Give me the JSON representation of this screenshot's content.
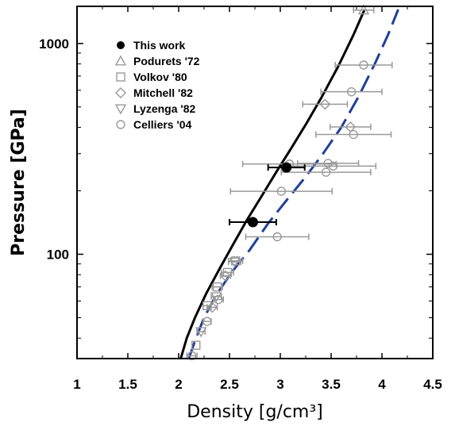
{
  "chart_data": {
    "type": "scatter",
    "xlabel": "Density [g/cm³]",
    "ylabel": "Pressure [GPa]",
    "xlim": [
      1,
      4.5
    ],
    "ylim": [
      32,
      1500
    ],
    "yscale": "log",
    "x_ticks": [
      1,
      1.5,
      2,
      2.5,
      3,
      3.5,
      4,
      4.5
    ],
    "x_tick_labels": [
      "1",
      "1.5",
      "2",
      "2.5",
      "3",
      "3.5",
      "4",
      "4.5"
    ],
    "y_labeled_ticks": [
      100,
      1000
    ],
    "y_tick_labels": [
      "100",
      "1000"
    ],
    "grid": false,
    "legend_position": "top-left",
    "curves": [
      {
        "style": "solid",
        "color": "#000000",
        "points": [
          [
            2.02,
            32
          ],
          [
            2.08,
            40
          ],
          [
            2.16,
            50
          ],
          [
            2.27,
            65
          ],
          [
            2.4,
            85
          ],
          [
            2.53,
            110
          ],
          [
            2.67,
            145
          ],
          [
            2.82,
            190
          ],
          [
            2.97,
            250
          ],
          [
            3.11,
            320
          ],
          [
            3.26,
            420
          ],
          [
            3.41,
            560
          ],
          [
            3.57,
            780
          ],
          [
            3.72,
            1100
          ],
          [
            3.83,
            1450
          ]
        ]
      },
      {
        "style": "dashed",
        "color": "#1f3f99",
        "points": [
          [
            2.1,
            32
          ],
          [
            2.17,
            40
          ],
          [
            2.25,
            50
          ],
          [
            2.36,
            63
          ],
          [
            2.52,
            82
          ],
          [
            2.7,
            105
          ],
          [
            2.88,
            140
          ],
          [
            3.06,
            180
          ],
          [
            3.24,
            230
          ],
          [
            3.42,
            300
          ],
          [
            3.6,
            400
          ],
          [
            3.77,
            560
          ],
          [
            3.93,
            800
          ],
          [
            4.06,
            1100
          ],
          [
            4.16,
            1450
          ]
        ]
      }
    ],
    "series": [
      {
        "name": "This work",
        "marker": "filled-circle",
        "color": "#000000",
        "points": [
          {
            "x": 2.73,
            "y": 142,
            "xerr": 0.23
          },
          {
            "x": 3.06,
            "y": 258,
            "xerr": 0.18
          }
        ]
      },
      {
        "name": "Podurets '72",
        "marker": "triangle-up",
        "color": "#999999",
        "points": [
          {
            "x": 3.82,
            "y": 1440,
            "xerr": 0.1
          }
        ]
      },
      {
        "name": "Volkov '80",
        "marker": "square",
        "color": "#999999",
        "points": [
          {
            "x": 2.17,
            "y": 37
          },
          {
            "x": 2.28,
            "y": 57,
            "xerr": 0.04
          },
          {
            "x": 2.38,
            "y": 70,
            "xerr": 0.05
          },
          {
            "x": 2.48,
            "y": 82,
            "xerr": 0.06
          },
          {
            "x": 2.56,
            "y": 93,
            "xerr": 0.07
          }
        ]
      },
      {
        "name": "Mitchell '82",
        "marker": "diamond",
        "color": "#999999",
        "points": [
          {
            "x": 2.33,
            "y": 56,
            "xerr": 0.05
          },
          {
            "x": 2.46,
            "y": 79,
            "xerr": 0.05
          },
          {
            "x": 3.44,
            "y": 515,
            "xerr": 0.22
          },
          {
            "x": 3.69,
            "y": 402,
            "xerr": 0.2
          }
        ]
      },
      {
        "name": "Lyzenga '82",
        "marker": "triangle-down",
        "color": "#999999",
        "points": [
          {
            "x": 2.22,
            "y": 43,
            "xerr": 0.04
          },
          {
            "x": 2.37,
            "y": 63,
            "xerr": 0.05
          },
          {
            "x": 2.55,
            "y": 92,
            "xerr": 0.06
          }
        ]
      },
      {
        "name": "Celliers '04",
        "marker": "open-circle",
        "color": "#999999",
        "points": [
          {
            "x": 2.13,
            "y": 33,
            "xerr": 0.05
          },
          {
            "x": 2.28,
            "y": 48,
            "xerr": 0.04
          },
          {
            "x": 2.39,
            "y": 61,
            "xerr": 0.05
          },
          {
            "x": 2.97,
            "y": 121,
            "xerr": 0.31
          },
          {
            "x": 3.01,
            "y": 199,
            "xerr": 0.5
          },
          {
            "x": 3.09,
            "y": 268,
            "xerr": 0.46
          },
          {
            "x": 3.45,
            "y": 245,
            "xerr": 0.44
          },
          {
            "x": 3.52,
            "y": 262,
            "xerr": 0.42
          },
          {
            "x": 3.47,
            "y": 270,
            "xerr": 0.3
          },
          {
            "x": 3.72,
            "y": 370,
            "xerr": 0.37
          },
          {
            "x": 3.7,
            "y": 590,
            "xerr": 0.3
          },
          {
            "x": 3.82,
            "y": 790,
            "xerr": 0.28
          }
        ]
      }
    ]
  }
}
